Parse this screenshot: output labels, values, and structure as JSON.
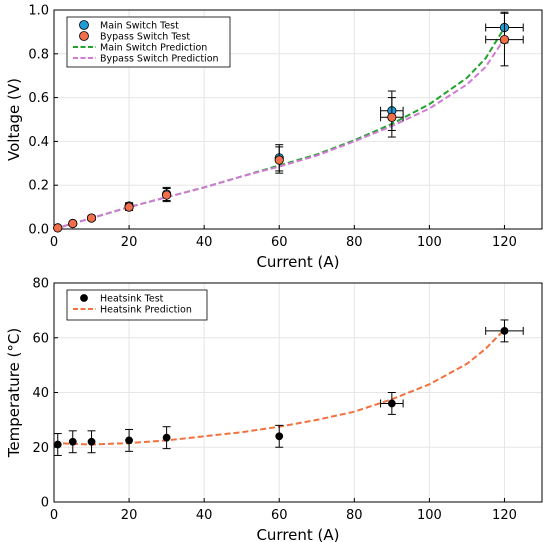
{
  "chart_data": [
    {
      "type": "scatter",
      "xlabel": "Current (A)",
      "ylabel": "Voltage (V)",
      "xlim": [
        0,
        130
      ],
      "ylim": [
        0,
        1.0
      ],
      "xticks": [
        0,
        20,
        40,
        60,
        80,
        100,
        120
      ],
      "xtick_labels": [
        "0",
        "20",
        "40",
        "60",
        "80",
        "100",
        "120"
      ],
      "yticks": [
        0,
        0.2,
        0.4,
        0.6,
        0.8,
        1.0
      ],
      "ytick_labels": [
        "0.0",
        "0.2",
        "0.4",
        "0.6",
        "0.8",
        "1.0"
      ],
      "grid": true,
      "legend_position": "top-left",
      "series": [
        {
          "name": "Main Switch Test",
          "kind": "points",
          "color": "#1f9bd6",
          "x": [
            1,
            5,
            10,
            20,
            30,
            60,
            90,
            120
          ],
          "y": [
            0.005,
            0.025,
            0.05,
            0.105,
            0.16,
            0.325,
            0.54,
            0.92
          ],
          "yerr": [
            0.005,
            0.008,
            0.01,
            0.015,
            0.03,
            0.06,
            0.09,
            0.07
          ],
          "xerr": [
            0,
            0,
            0,
            0,
            0,
            0,
            3,
            5
          ]
        },
        {
          "name": "Bypass Switch Test",
          "kind": "points",
          "color": "#f06f4a",
          "x": [
            1,
            5,
            10,
            20,
            30,
            60,
            90,
            120
          ],
          "y": [
            0.005,
            0.025,
            0.05,
            0.1,
            0.155,
            0.315,
            0.51,
            0.865
          ],
          "yerr": [
            0.005,
            0.008,
            0.01,
            0.015,
            0.03,
            0.06,
            0.09,
            0.12
          ],
          "xerr": [
            0,
            0,
            0,
            0,
            0,
            0,
            3,
            5
          ]
        },
        {
          "name": "Main Switch Prediction",
          "kind": "line",
          "dash": "dashed",
          "color": "#22a22e",
          "x": [
            0,
            10,
            20,
            30,
            40,
            50,
            60,
            70,
            80,
            90,
            100,
            110,
            115,
            120
          ],
          "y": [
            0,
            0.05,
            0.1,
            0.145,
            0.19,
            0.24,
            0.29,
            0.34,
            0.405,
            0.48,
            0.57,
            0.69,
            0.78,
            0.92
          ]
        },
        {
          "name": "Bypass Switch Prediction",
          "kind": "line",
          "dash": "dashed",
          "color": "#d27ad6",
          "x": [
            0,
            10,
            20,
            30,
            40,
            50,
            60,
            70,
            80,
            90,
            100,
            110,
            115,
            120
          ],
          "y": [
            0,
            0.05,
            0.1,
            0.145,
            0.19,
            0.24,
            0.285,
            0.335,
            0.4,
            0.47,
            0.55,
            0.66,
            0.74,
            0.87
          ]
        }
      ]
    },
    {
      "type": "scatter",
      "xlabel": "Current (A)",
      "ylabel": "Temperature (°C)",
      "xlim": [
        0,
        130
      ],
      "ylim": [
        0,
        80
      ],
      "xticks": [
        0,
        20,
        40,
        60,
        80,
        100,
        120
      ],
      "xtick_labels": [
        "0",
        "20",
        "40",
        "60",
        "80",
        "100",
        "120"
      ],
      "yticks": [
        0,
        20,
        40,
        60,
        80
      ],
      "ytick_labels": [
        "0",
        "20",
        "40",
        "60",
        "80"
      ],
      "grid": true,
      "legend_position": "top-left",
      "series": [
        {
          "name": "Heatsink Test",
          "kind": "points",
          "color": "#000000",
          "x": [
            1,
            5,
            10,
            20,
            30,
            60,
            90,
            120
          ],
          "y": [
            21,
            22,
            22,
            22.5,
            23.5,
            24,
            36,
            62.5
          ],
          "yerr": [
            4,
            4,
            4,
            4,
            4,
            4,
            4,
            4
          ],
          "xerr": [
            0,
            0,
            0,
            0,
            0,
            0,
            3,
            5
          ]
        },
        {
          "name": "Heatsink Prediction",
          "kind": "line",
          "dash": "dashed",
          "color": "#f2713f",
          "x": [
            0,
            10,
            20,
            30,
            40,
            50,
            60,
            70,
            80,
            90,
            100,
            110,
            115,
            120
          ],
          "y": [
            21.5,
            21,
            21.5,
            22.5,
            24,
            25.5,
            27.5,
            30,
            33,
            37.5,
            43,
            50.5,
            56,
            63
          ]
        }
      ]
    }
  ]
}
